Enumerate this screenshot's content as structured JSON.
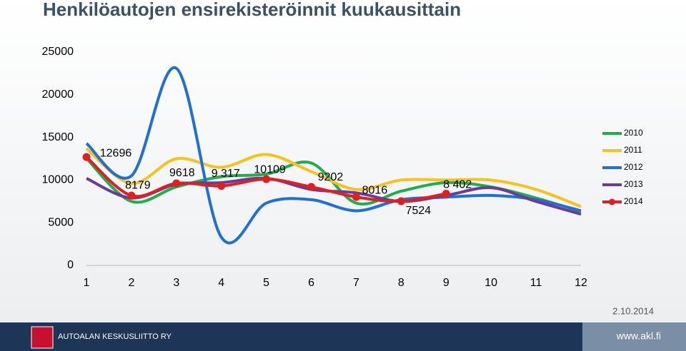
{
  "chart_data": {
    "type": "line",
    "title": "Henkilöautojen ensirekisteröinnit kuukausittain",
    "categories": [
      "1",
      "2",
      "3",
      "4",
      "5",
      "6",
      "7",
      "8",
      "9",
      "10",
      "11",
      "12"
    ],
    "series": [
      {
        "name": "2010",
        "color": "#1fae4b",
        "values": [
          12540,
          7500,
          9200,
          10400,
          10700,
          12000,
          7300,
          8700,
          9700,
          9200,
          7900,
          6300
        ]
      },
      {
        "name": "2011",
        "color": "#f7c21b",
        "values": [
          13700,
          9600,
          12500,
          11500,
          13000,
          11000,
          8900,
          10000,
          10000,
          10000,
          8900,
          6900
        ]
      },
      {
        "name": "2012",
        "color": "#1f6fd9",
        "values": [
          14300,
          10500,
          23100,
          3300,
          7300,
          7700,
          6400,
          7700,
          8000,
          8200,
          7700,
          6400
        ]
      },
      {
        "name": "2013",
        "color": "#6b3a9a",
        "values": [
          10200,
          7900,
          9500,
          9700,
          10200,
          8900,
          8500,
          7500,
          8200,
          9100,
          7500,
          6000
        ]
      },
      {
        "name": "2014",
        "color": "#e02020",
        "markers": true,
        "values": [
          12696,
          8179,
          9618,
          9317,
          10109,
          9202,
          8016,
          7524,
          8402,
          null,
          null,
          null
        ],
        "value_labels": [
          "12696",
          "8179",
          "9618",
          "9 317",
          "10109",
          "9202",
          "8016",
          "7524",
          "8 402",
          null,
          null,
          null
        ]
      }
    ],
    "ylim": [
      0,
      25000
    ],
    "yticks": [
      0,
      5000,
      10000,
      15000,
      20000,
      25000
    ],
    "grid": false,
    "legend": "right"
  },
  "footer": {
    "date": "2.10.2014",
    "organization": "AUTOALAN KESKUSLIITTO RY",
    "website": "www.akl.fi"
  }
}
